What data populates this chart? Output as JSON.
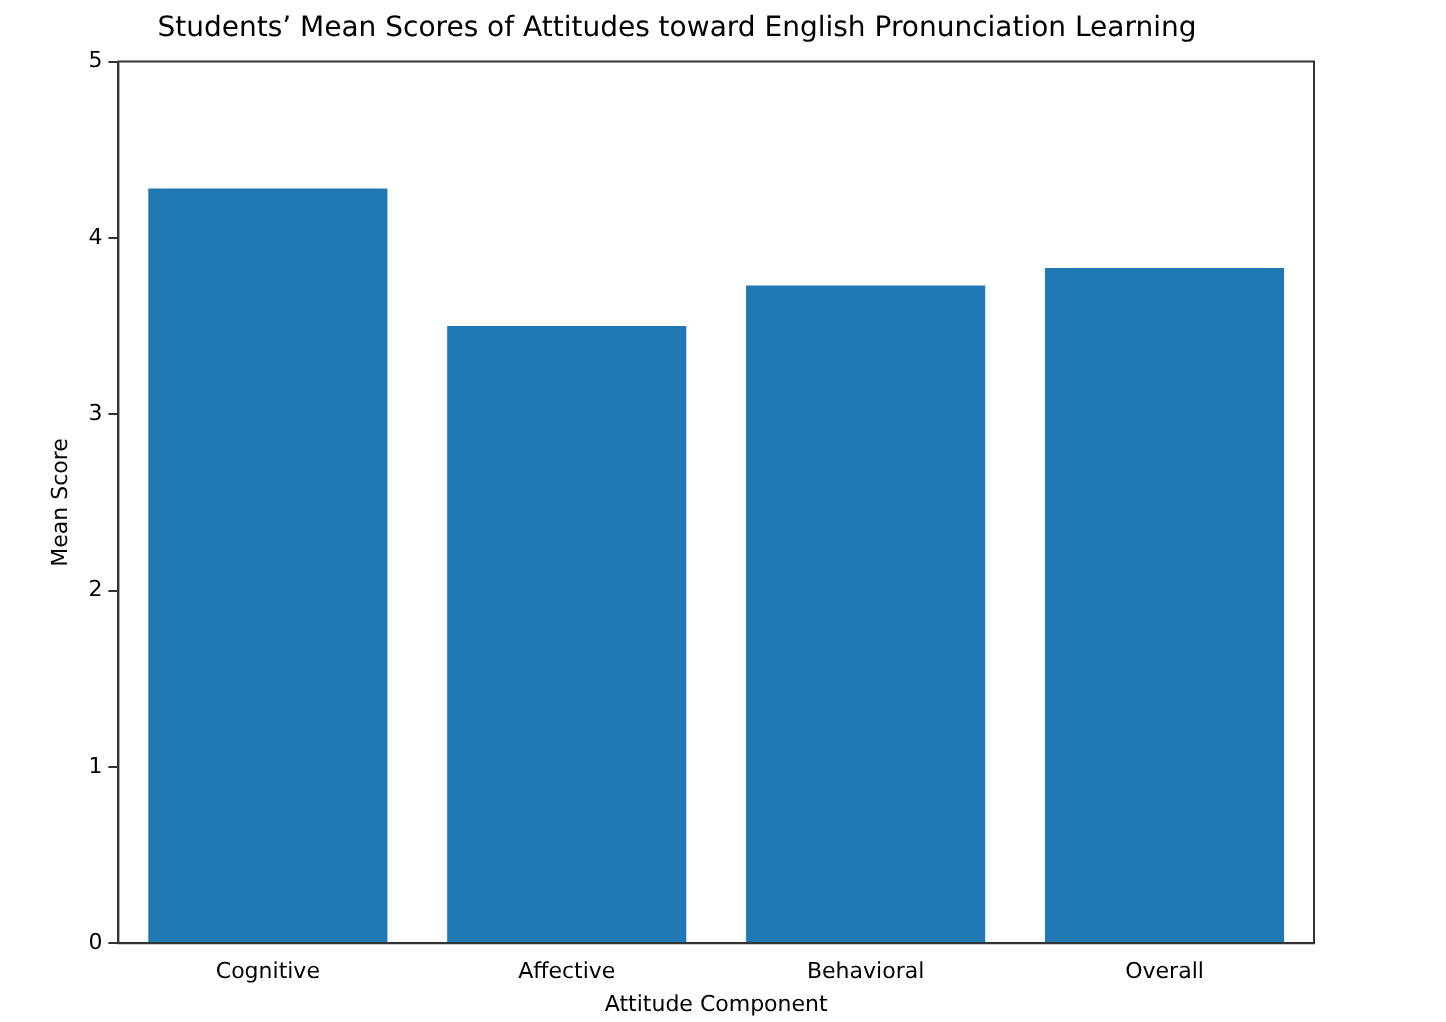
{
  "chart_data": {
    "type": "bar",
    "title": "Students’ Mean Scores of Attitudes toward English Pronunciation Learning",
    "xlabel": "Attitude Component",
    "ylabel": "Mean Score",
    "categories": [
      "Cognitive",
      "Affective",
      "Behavioral",
      "Overall"
    ],
    "values": [
      4.28,
      3.5,
      3.73,
      3.83
    ],
    "color": "#1f77b4",
    "ylim": [
      0,
      5
    ],
    "yticks": [
      0,
      1,
      2,
      3,
      4,
      5
    ],
    "grid": false,
    "legend": false
  }
}
